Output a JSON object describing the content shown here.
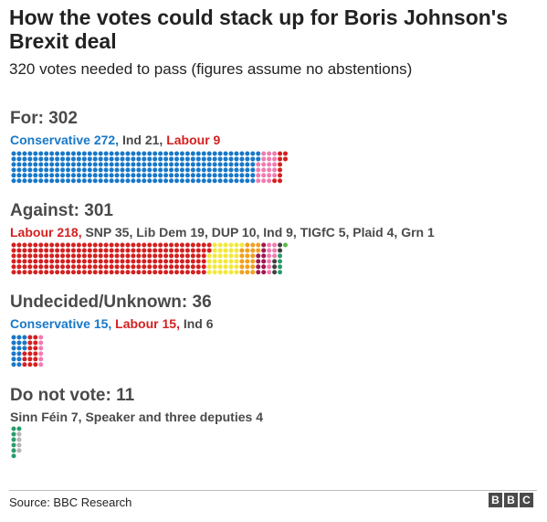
{
  "title": "How the votes could stack up for Boris Johnson's Brexit deal",
  "subtitle": "320 votes needed to pass (figures assume no abstentions)",
  "source": "Source: BBC Research",
  "logo": [
    "B",
    "B",
    "C"
  ],
  "colors": {
    "Conservative": "#1878c8",
    "Labour": "#d42020",
    "Ind": "#f07cb0",
    "SNP": "#f2e83a",
    "Lib Dem": "#f0a020",
    "DUP": "#a01850",
    "TIGfC": "#404040",
    "Plaid": "#2a9d6a",
    "Grn": "#5cb84c",
    "Sinn Féin": "#2a9d6a",
    "Speaker": "#b5b5b5"
  },
  "chart_data": {
    "type": "waffle",
    "title": "How the votes could stack up for Boris Johnson's Brexit deal",
    "subtitle": "320 votes needed to pass (figures assume no abstentions)",
    "groups": [
      {
        "heading": "For: 302",
        "total": 302,
        "segments": [
          {
            "label": "Conservative 272,",
            "party": "Conservative",
            "value": 272,
            "text_color": "#1878c8"
          },
          {
            "label": "Ind 21,",
            "party": "Ind",
            "value": 21,
            "text_color": "#4a4a4a"
          },
          {
            "label": "Labour 9",
            "party": "Labour",
            "value": 9,
            "text_color": "#d42020"
          }
        ]
      },
      {
        "heading": "Against: 301",
        "total": 301,
        "segments": [
          {
            "label": "Labour 218,",
            "party": "Labour",
            "value": 218,
            "text_color": "#d42020"
          },
          {
            "label": "SNP 35,",
            "party": "SNP",
            "value": 35,
            "text_color": "#4a4a4a"
          },
          {
            "label": "Lib Dem 19,",
            "party": "Lib Dem",
            "value": 19,
            "text_color": "#4a4a4a"
          },
          {
            "label": "DUP 10,",
            "party": "DUP",
            "value": 10,
            "text_color": "#4a4a4a"
          },
          {
            "label": "Ind 9,",
            "party": "Ind",
            "value": 9,
            "text_color": "#4a4a4a"
          },
          {
            "label": "TIGfC 5,",
            "party": "TIGfC",
            "value": 5,
            "text_color": "#4a4a4a"
          },
          {
            "label": "Plaid 4,",
            "party": "Plaid",
            "value": 4,
            "text_color": "#4a4a4a"
          },
          {
            "label": "Grn 1",
            "party": "Grn",
            "value": 1,
            "text_color": "#4a4a4a"
          }
        ]
      },
      {
        "heading": "Undecided/Unknown: 36",
        "total": 36,
        "segments": [
          {
            "label": "Conservative 15,",
            "party": "Conservative",
            "value": 15,
            "text_color": "#1878c8"
          },
          {
            "label": "Labour 15,",
            "party": "Labour",
            "value": 15,
            "text_color": "#d42020"
          },
          {
            "label": "Ind 6",
            "party": "Ind",
            "value": 6,
            "text_color": "#4a4a4a"
          }
        ]
      },
      {
        "heading": "Do not vote: 11",
        "total": 11,
        "segments": [
          {
            "label": "Sinn Féin 7,",
            "party": "Sinn Féin",
            "value": 7,
            "text_color": "#4a4a4a"
          },
          {
            "label": "Speaker and three deputies 4",
            "party": "Speaker",
            "value": 4,
            "text_color": "#4a4a4a"
          }
        ]
      }
    ]
  }
}
